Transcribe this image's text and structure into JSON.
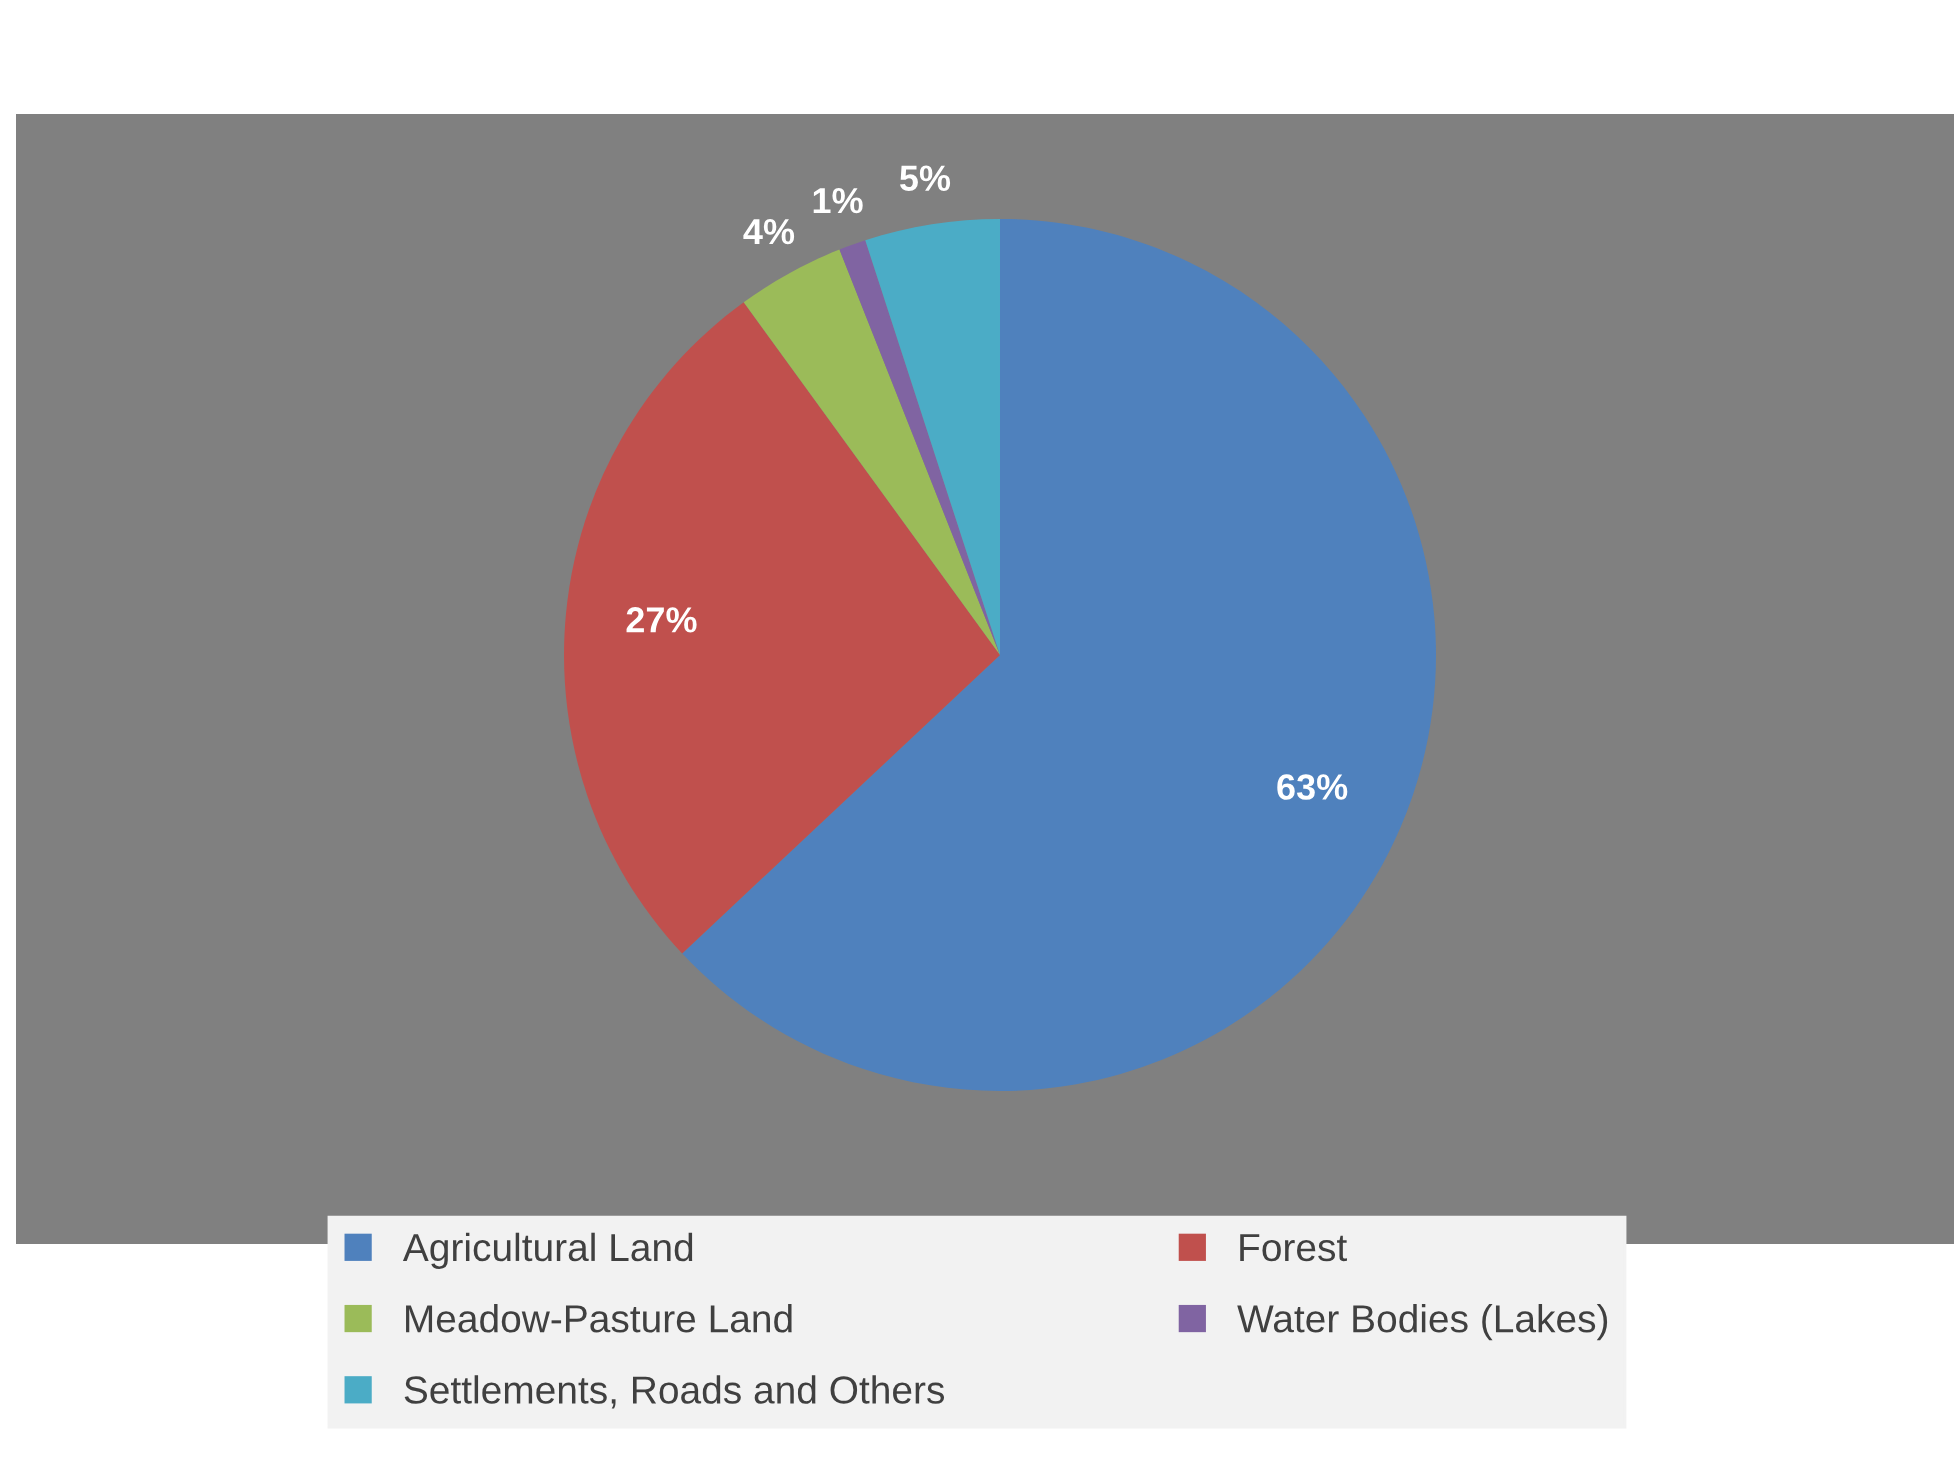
{
  "chart_data": {
    "type": "pie",
    "categories": [
      "Agricultural Land",
      "Forest",
      "Meadow-Pasture Land",
      "Water Bodies (Lakes)",
      "Settlements, Roads and Others"
    ],
    "values": [
      63,
      27,
      4,
      1,
      5
    ],
    "value_labels": [
      "63%",
      "27%",
      "4%",
      "1%",
      "5%"
    ],
    "colors": [
      "#4f81bd",
      "#c0504d",
      "#9bbb59",
      "#8064a2",
      "#4bacc6"
    ],
    "legend": "bottom"
  }
}
